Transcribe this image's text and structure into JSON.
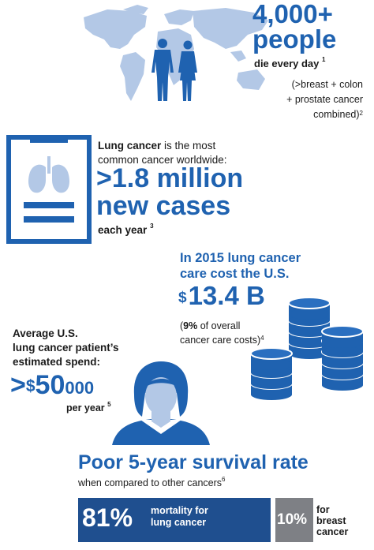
{
  "deaths": {
    "number": "4,000+",
    "word": "people",
    "desc": "die every day",
    "desc_ref": "1",
    "compare_l1": "(>breast + colon",
    "compare_l2": "+ prostate cancer",
    "compare_l3": "combined)",
    "compare_ref": "2"
  },
  "lung": {
    "intro_bold": "Lung cancer",
    "intro_rest": " is the most",
    "intro_l2": "common cancer worldwide:",
    "big_l1": ">1.8 million",
    "big_l2": "new cases",
    "each": "each year",
    "each_ref": "3"
  },
  "cost": {
    "title_l1": "In 2015 lung cancer",
    "title_l2": "care cost the U.S.",
    "dollar": "$",
    "amount": "13.4 B",
    "pct_open": "(",
    "pct_value": "9%",
    "pct_rest": " of overall",
    "pct_l2": "cancer care costs)",
    "pct_ref": "4"
  },
  "spend": {
    "l1": "Average U.S.",
    "l2": "lung cancer patient’s",
    "l3": "estimated spend:",
    "gt": ">",
    "dollar": "$",
    "amount_big": "50",
    "amount_small": "000",
    "per_year": "per year",
    "ref": "5"
  },
  "survival": {
    "title": "Poor 5-year survival rate",
    "subtitle": "when compared to other cancers",
    "sub_ref": "6",
    "lung_pct": "81%",
    "lung_label_l1": "mortality for",
    "lung_label_l2": "lung cancer",
    "breast_pct": "10%",
    "breast_label_l1": "for",
    "breast_label_l2": "breast",
    "breast_label_l3": "cancer"
  },
  "colors": {
    "brand_blue": "#1f62b0",
    "bar_blue": "#1f4f8f",
    "bar_gray": "#7e8085",
    "map_blue": "#b3c8e6"
  },
  "icons": [
    "world-map-icon",
    "people-silhouette-icon",
    "clipboard-lungs-icon",
    "coin-stacks-icon",
    "woman-avatar-icon"
  ]
}
